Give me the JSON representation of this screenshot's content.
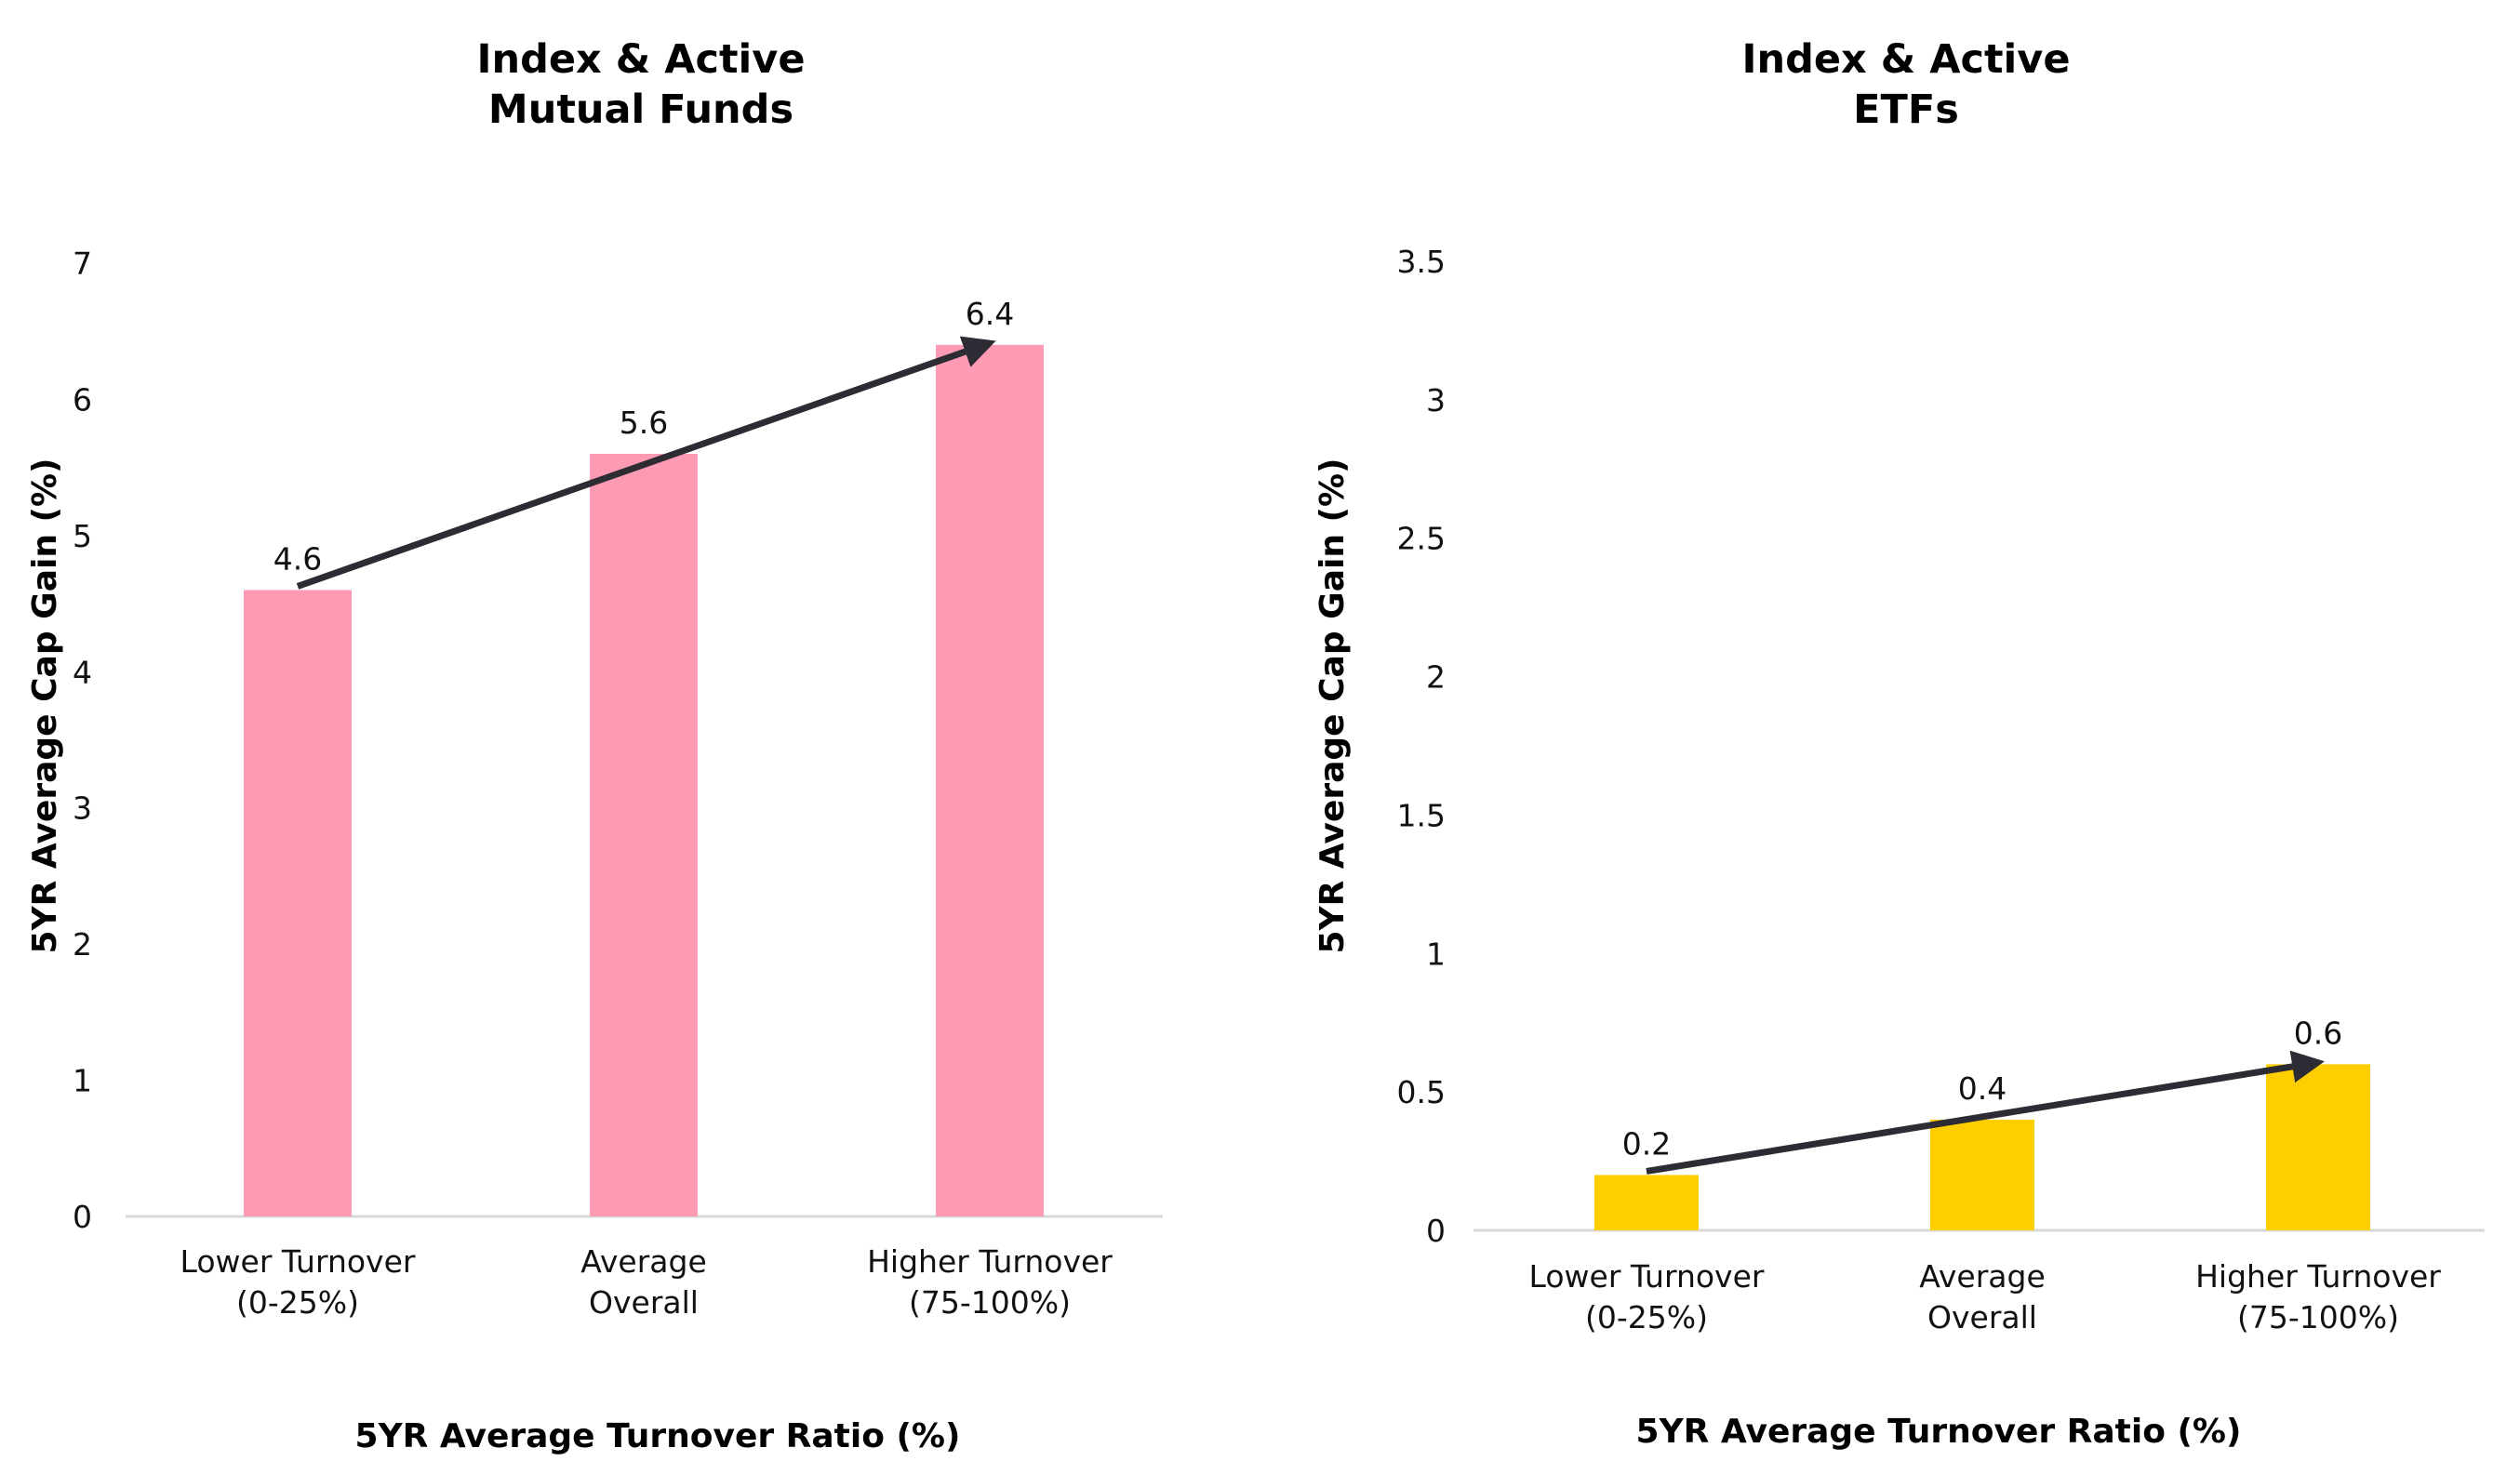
{
  "colors": {
    "arrow": "#2d2b33",
    "axis": "#d9d9d9"
  },
  "chart_data": [
    {
      "type": "bar",
      "title": [
        "Index & Active",
        "Mutual Funds"
      ],
      "categories": [
        [
          "Lower Turnover",
          "(0-25%)"
        ],
        [
          "Average",
          "Overall"
        ],
        [
          "Higher Turnover",
          "(75-100%)"
        ]
      ],
      "values": [
        4.6,
        5.6,
        6.4
      ],
      "data_labels": [
        "4.6",
        "5.6",
        "6.4"
      ],
      "color": "#FC9BB3",
      "xlabel": "5YR Average Turnover Ratio (%)",
      "ylabel": "5YR Average Cap Gain (%)",
      "ylim": [
        0,
        7
      ],
      "yticks": [
        "0",
        "1",
        "2",
        "3",
        "4",
        "5",
        "6",
        "7"
      ],
      "grid": false,
      "annotation": "arrow from first to last bar top"
    },
    {
      "type": "bar",
      "title": [
        "Index & Active",
        "ETFs"
      ],
      "categories": [
        [
          "Lower Turnover",
          "(0-25%)"
        ],
        [
          "Average",
          "Overall"
        ],
        [
          "Higher Turnover",
          "(75-100%)"
        ]
      ],
      "values": [
        0.2,
        0.4,
        0.6
      ],
      "data_labels": [
        "0.2",
        "0.4",
        "0.6"
      ],
      "color": "#FFCE00",
      "xlabel": "5YR Average Turnover Ratio (%)",
      "ylabel": "5YR Average Cap Gain (%)",
      "ylim": [
        0,
        3.5
      ],
      "yticks": [
        "0",
        "0.5",
        "1",
        "1.5",
        "2",
        "2.5",
        "3",
        "3.5"
      ],
      "grid": false,
      "annotation": "arrow from first to last bar top"
    }
  ]
}
